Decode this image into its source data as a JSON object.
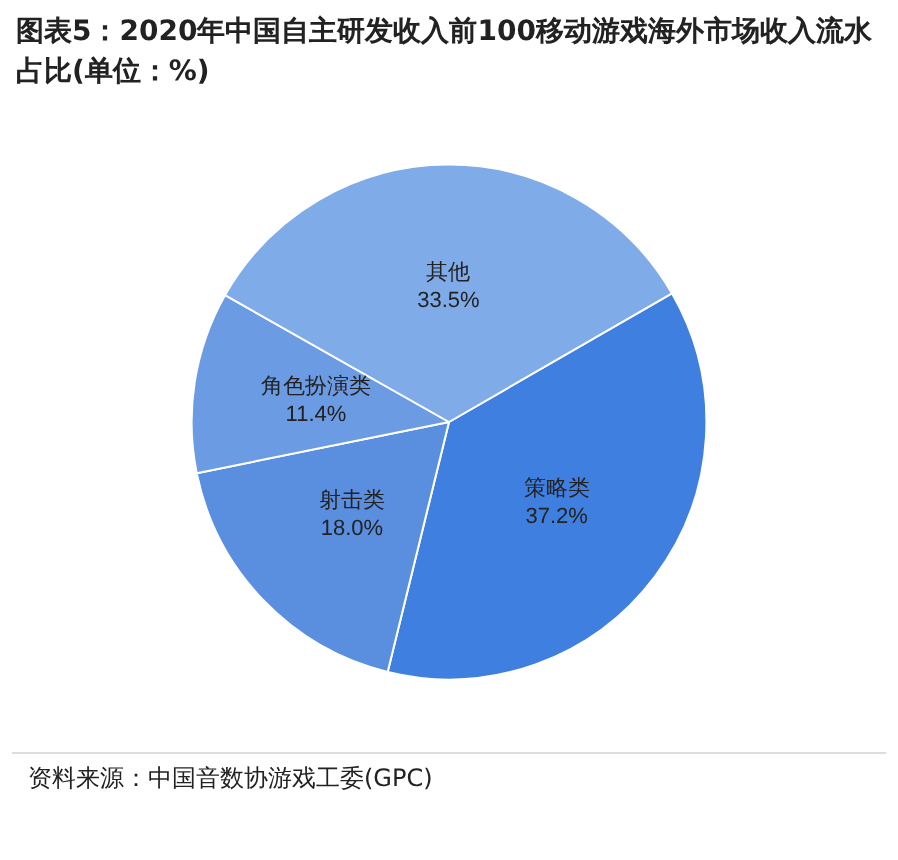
{
  "chart_data": {
    "type": "pie",
    "title": "图表5：2020年中国自主研发收入前100移动游戏海外市场收入流水占比(单位：%)",
    "categories": [
      "策略类",
      "射击类",
      "角色扮演类",
      "其他"
    ],
    "values": [
      37.2,
      18.0,
      11.4,
      33.5
    ],
    "value_labels": [
      "37.2%",
      "18.0%",
      "11.4%",
      "33.5%"
    ],
    "colors": [
      "#3f7fdf",
      "#5a8fe0",
      "#6b9be3",
      "#7fabe8"
    ],
    "legend": false,
    "annotations": [
      "资料来源：中国音数协游戏工委(GPC)"
    ]
  }
}
